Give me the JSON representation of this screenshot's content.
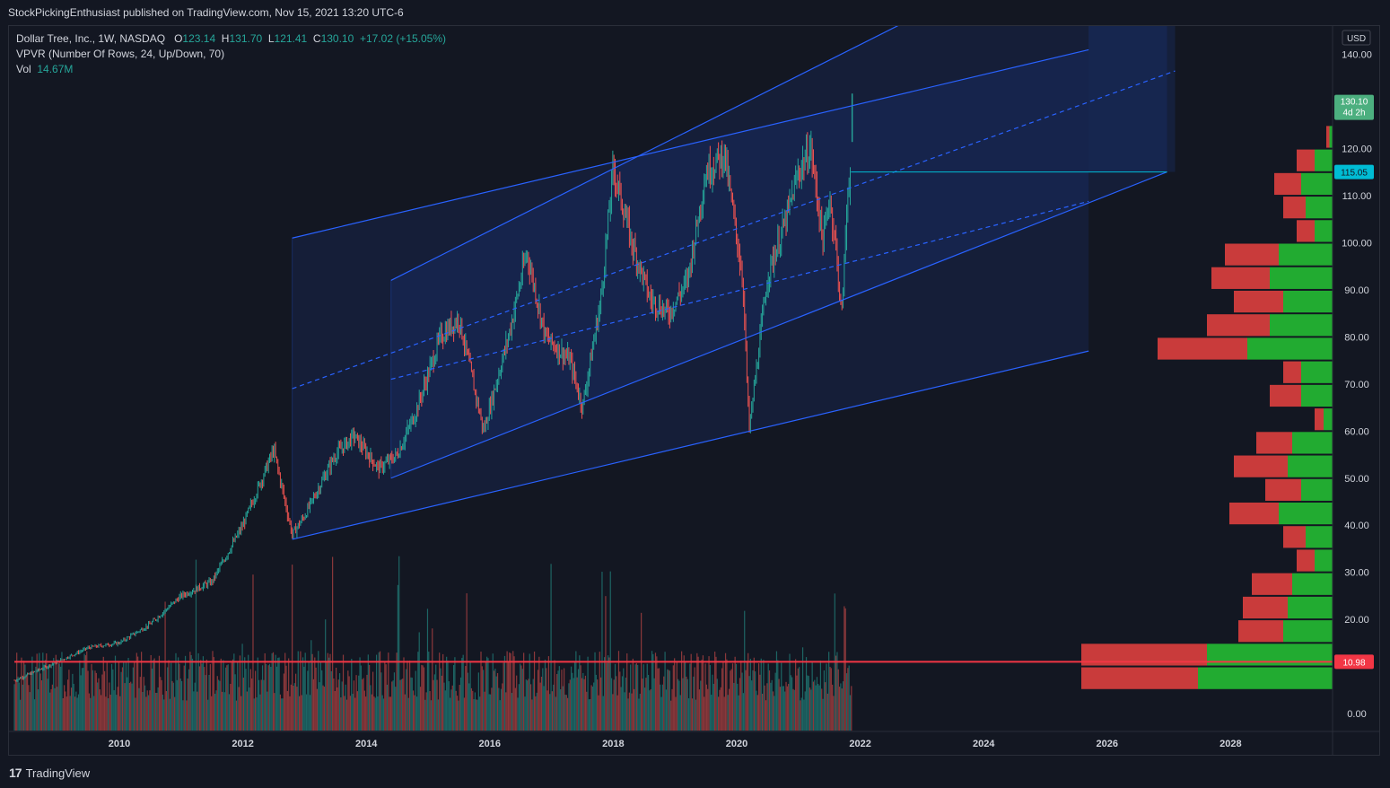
{
  "header": {
    "publisher": "StockPickingEnthusiast published on TradingView.com, Nov 15, 2021 13:20 UTC-6"
  },
  "legend": {
    "symbol": "Dollar Tree, Inc., 1W, NASDAQ",
    "o_label": "O",
    "o": "123.14",
    "h_label": "H",
    "h": "131.70",
    "l_label": "L",
    "l": "121.41",
    "c_label": "C",
    "c": "130.10",
    "change": "+17.02 (+15.05%)",
    "vpvr": "VPVR (Number Of Rows, 24, Up/Down, 70)",
    "vol_label": "Vol",
    "vol": "14.67M"
  },
  "footer": {
    "brand": "TradingView"
  },
  "chart_data": {
    "type": "candlestick",
    "currency": "USD",
    "x_ticks": [
      "2010",
      "2012",
      "2014",
      "2016",
      "2018",
      "2020",
      "2022",
      "2024",
      "2026",
      "2028"
    ],
    "xlim": [
      2008.3,
      2029.8
    ],
    "y_ticks": [
      "140.00",
      "120.00",
      "110.00",
      "100.00",
      "90.00",
      "80.00",
      "70.00",
      "60.00",
      "50.00",
      "40.00",
      "30.00",
      "20.00",
      "0.00"
    ],
    "ylim": [
      -4,
      150
    ],
    "last_price": {
      "value": "130.10",
      "countdown": "4d 2h"
    },
    "horizontal_levels": [
      {
        "value": "115.05",
        "color": "#00bcd4",
        "start_year": 2021.85,
        "end_year": 2026.97
      },
      {
        "value": "10.98",
        "color": "#f23645",
        "start_year": 2008.3,
        "end_year": 2029.8
      }
    ],
    "price_path": [
      [
        2008.3,
        7
      ],
      [
        2009.0,
        11
      ],
      [
        2009.5,
        14
      ],
      [
        2010.0,
        15
      ],
      [
        2010.5,
        19
      ],
      [
        2011.0,
        25
      ],
      [
        2011.5,
        28
      ],
      [
        2012.0,
        40
      ],
      [
        2012.5,
        56
      ],
      [
        2012.8,
        38
      ],
      [
        2013.0,
        42
      ],
      [
        2013.5,
        55
      ],
      [
        2013.8,
        59
      ],
      [
        2014.2,
        52
      ],
      [
        2014.5,
        55
      ],
      [
        2014.8,
        64
      ],
      [
        2015.2,
        80
      ],
      [
        2015.5,
        84
      ],
      [
        2015.9,
        60
      ],
      [
        2016.3,
        80
      ],
      [
        2016.6,
        98
      ],
      [
        2016.9,
        80
      ],
      [
        2017.3,
        75
      ],
      [
        2017.5,
        65
      ],
      [
        2017.8,
        88
      ],
      [
        2018.0,
        116
      ],
      [
        2018.3,
        100
      ],
      [
        2018.6,
        88
      ],
      [
        2018.9,
        85
      ],
      [
        2019.2,
        92
      ],
      [
        2019.5,
        115
      ],
      [
        2019.8,
        119
      ],
      [
        2020.1,
        92
      ],
      [
        2020.2,
        60
      ],
      [
        2020.5,
        93
      ],
      [
        2020.8,
        105
      ],
      [
        2021.0,
        115
      ],
      [
        2021.2,
        120
      ],
      [
        2021.4,
        100
      ],
      [
        2021.5,
        110
      ],
      [
        2021.6,
        100
      ],
      [
        2021.7,
        84
      ],
      [
        2021.8,
        112
      ],
      [
        2021.85,
        115.05
      ],
      [
        2021.87,
        130.1
      ]
    ],
    "channels": [
      {
        "line_style": "solid",
        "fill": true,
        "upper": [
          [
            2014.4,
            92
          ],
          [
            2021.85,
            130.5
          ],
          [
            2023.2,
            150
          ]
        ],
        "lower": [
          [
            2014.4,
            50
          ],
          [
            2026.97,
            115.05
          ]
        ],
        "median": [
          [
            2014.4,
            71
          ],
          [
            2025.7,
            108.8
          ]
        ]
      },
      {
        "line_style": "solid",
        "fill": true,
        "upper": [
          [
            2012.8,
            101
          ],
          [
            2025.7,
            141
          ]
        ],
        "lower": [
          [
            2012.8,
            37
          ],
          [
            2025.7,
            77
          ]
        ],
        "median": [
          [
            2012.8,
            69
          ],
          [
            2027.1,
            136.5
          ]
        ]
      }
    ],
    "shaded_box": {
      "x": [
        2025.7,
        2027.1
      ],
      "y": [
        115.05,
        150
      ]
    },
    "volume": {
      "last": "14.67M",
      "max_millions": 36
    },
    "volume_profile": [
      {
        "price_low": 120,
        "price_high": 125,
        "up": 0.7,
        "down": 0.7
      },
      {
        "price_low": 115,
        "price_high": 120,
        "up": 4,
        "down": 4
      },
      {
        "price_low": 110,
        "price_high": 115,
        "up": 7,
        "down": 6
      },
      {
        "price_low": 105,
        "price_high": 110,
        "up": 6,
        "down": 5
      },
      {
        "price_low": 100,
        "price_high": 105,
        "up": 4,
        "down": 4
      },
      {
        "price_low": 95,
        "price_high": 100,
        "up": 12,
        "down": 12
      },
      {
        "price_low": 90,
        "price_high": 95,
        "up": 14,
        "down": 13
      },
      {
        "price_low": 85,
        "price_high": 90,
        "up": 11,
        "down": 11
      },
      {
        "price_low": 80,
        "price_high": 85,
        "up": 14,
        "down": 14
      },
      {
        "price_low": 75,
        "price_high": 80,
        "up": 19,
        "down": 20
      },
      {
        "price_low": 70,
        "price_high": 75,
        "up": 7,
        "down": 4
      },
      {
        "price_low": 65,
        "price_high": 70,
        "up": 7,
        "down": 7
      },
      {
        "price_low": 60,
        "price_high": 65,
        "up": 2,
        "down": 2
      },
      {
        "price_low": 55,
        "price_high": 60,
        "up": 9,
        "down": 8
      },
      {
        "price_low": 50,
        "price_high": 55,
        "up": 10,
        "down": 12
      },
      {
        "price_low": 45,
        "price_high": 50,
        "up": 7,
        "down": 8
      },
      {
        "price_low": 40,
        "price_high": 45,
        "up": 12,
        "down": 11
      },
      {
        "price_low": 35,
        "price_high": 40,
        "up": 6,
        "down": 5
      },
      {
        "price_low": 30,
        "price_high": 35,
        "up": 4,
        "down": 4
      },
      {
        "price_low": 25,
        "price_high": 30,
        "up": 9,
        "down": 9
      },
      {
        "price_low": 20,
        "price_high": 25,
        "up": 10,
        "down": 10
      },
      {
        "price_low": 15,
        "price_high": 20,
        "up": 11,
        "down": 10
      },
      {
        "price_low": 10,
        "price_high": 15,
        "up": 28,
        "down": 28
      },
      {
        "price_low": 5,
        "price_high": 10,
        "up": 30,
        "down": 26
      }
    ]
  },
  "colors": {
    "up": "#26a69a",
    "down": "#ef5350",
    "channel": "#2962ff",
    "profile_up": "#22ab31",
    "profile_down": "#c93b3b",
    "background": "#131722"
  }
}
